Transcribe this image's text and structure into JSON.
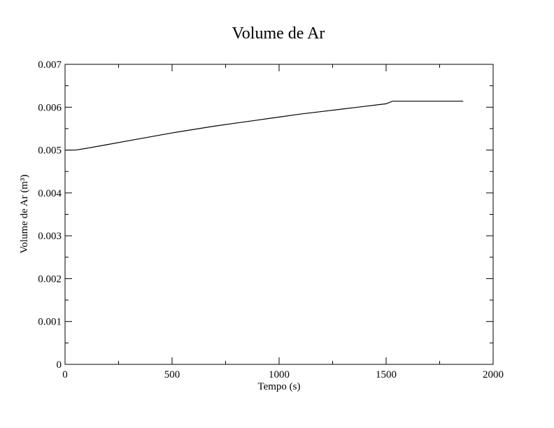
{
  "chart_data": {
    "type": "line",
    "title": "Volume de Ar",
    "xlabel": "Tempo (s)",
    "ylabel": "Volume de Ar (m³)",
    "xlim": [
      0,
      2000
    ],
    "ylim": [
      0,
      0.007
    ],
    "x_ticks": [
      "0",
      "500",
      "1000",
      "1500",
      "2000"
    ],
    "y_ticks": [
      "0",
      "0.001",
      "0.002",
      "0.003",
      "0.004",
      "0.005",
      "0.006",
      "0.007"
    ],
    "grid": false,
    "series": [
      {
        "color": "#000000",
        "x": [
          0,
          50,
          100,
          200,
          300,
          400,
          500,
          600,
          700,
          800,
          900,
          1000,
          1100,
          1200,
          1300,
          1400,
          1500,
          1530,
          1600,
          1700,
          1800,
          1860
        ],
        "y": [
          0.005,
          0.005,
          0.00504,
          0.00513,
          0.00522,
          0.00531,
          0.0054,
          0.00548,
          0.00556,
          0.00563,
          0.0057,
          0.00577,
          0.00584,
          0.0059,
          0.00596,
          0.00602,
          0.00608,
          0.00614,
          0.00614,
          0.00614,
          0.00614,
          0.00614
        ]
      }
    ]
  }
}
